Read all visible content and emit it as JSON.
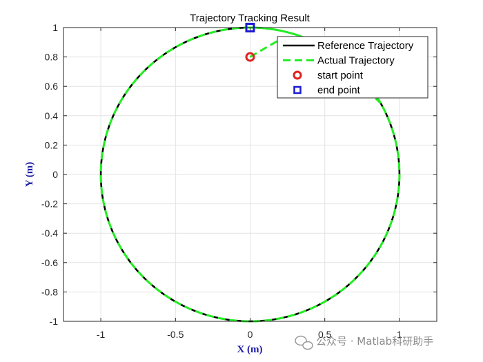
{
  "chart_data": {
    "type": "line",
    "title": "Trajectory Tracking Result",
    "xlabel": "X (m)",
    "ylabel": "Y (m)",
    "xlim": [
      -1.25,
      1.25
    ],
    "ylim": [
      -1,
      1
    ],
    "xticks": [
      -1,
      -0.5,
      0,
      0.5,
      1
    ],
    "xtick_labels": [
      "-1",
      "-0.5",
      "0",
      "0.5",
      "1"
    ],
    "yticks": [
      -1,
      -0.8,
      -0.6,
      -0.4,
      -0.2,
      0,
      0.2,
      0.4,
      0.6,
      0.8,
      1
    ],
    "ytick_labels": [
      "-1",
      "-0.8",
      "-0.6",
      "-0.4",
      "-0.2",
      "0",
      "0.2",
      "0.4",
      "0.6",
      "0.8",
      "1"
    ],
    "grid": true,
    "legend_position": "top-right",
    "series": [
      {
        "name": "Reference Trajectory",
        "color": "#000000",
        "style": "solid",
        "description": "circle",
        "center": [
          0,
          0
        ],
        "radius": 1
      },
      {
        "name": "Actual Trajectory",
        "color": "#22ee22",
        "style": "dashed",
        "transient_points": [
          [
            0,
            0.8
          ],
          [
            0.1,
            0.86
          ],
          [
            0.22,
            0.93
          ],
          [
            0.38,
            0.9
          ],
          [
            0.48,
            0.87
          ]
        ],
        "steady_state": "follows reference circle"
      }
    ],
    "markers": [
      {
        "name": "start point",
        "x": 0,
        "y": 0.8,
        "shape": "circle",
        "color": "#e02020"
      },
      {
        "name": "end point",
        "x": 0,
        "y": 1,
        "shape": "square",
        "color": "#1a1ad0"
      }
    ]
  },
  "watermark": {
    "text": "公众号 · Matlab科研助手",
    "icon": "wechat-icon"
  }
}
